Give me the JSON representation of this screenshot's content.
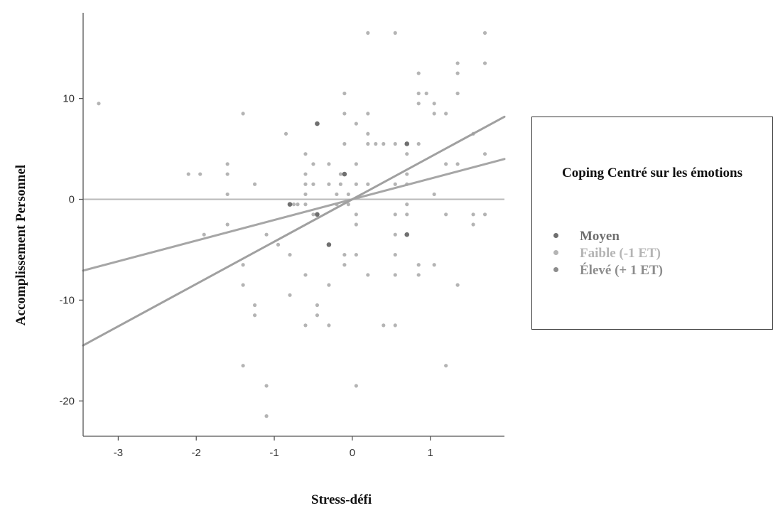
{
  "colors": {
    "moyen": "#6f6f6f",
    "faible": "#b4b4b4",
    "eleve": "#8c8c8c",
    "zero_line": "#b9b9b9"
  },
  "legend": {
    "title": "Coping Centré sur les émotions",
    "items": [
      {
        "label": "Moyen",
        "color": "#6f6f6f"
      },
      {
        "label": "Faible (-1 ET)",
        "color": "#b4b4b4"
      },
      {
        "label": "Élevé (+ 1 ET)",
        "color": "#8c8c8c"
      }
    ]
  },
  "chart_data": {
    "type": "scatter",
    "title": "",
    "xlabel": "Stress-défi",
    "ylabel": "Accomplissement Personnel",
    "xlim": [
      -3.45,
      1.95
    ],
    "ylim": [
      -23.5,
      18.5
    ],
    "xticks": [
      -3,
      -2,
      -1,
      0,
      1
    ],
    "yticks": [
      10,
      0,
      -10,
      -20
    ],
    "reference_line_y": 0,
    "fit_lines": [
      {
        "name": "Moyen",
        "slope": 0,
        "intercept": 0,
        "color": "#b9b9b9"
      },
      {
        "name": "Faible (-1 ET)",
        "slope": 2.05,
        "intercept": 0,
        "color": "#a6a6a6"
      },
      {
        "name": "Élevé (+ 1 ET)",
        "slope": 4.2,
        "intercept": 0,
        "color": "#a0a0a0"
      }
    ],
    "points": [
      [
        -3.25,
        9.5
      ],
      [
        -2.1,
        2.5
      ],
      [
        -1.95,
        2.5
      ],
      [
        -1.9,
        -3.5
      ],
      [
        -1.6,
        3.5
      ],
      [
        -1.6,
        2.5
      ],
      [
        -1.6,
        0.5
      ],
      [
        -1.6,
        -2.5
      ],
      [
        -1.4,
        8.5
      ],
      [
        -1.4,
        -6.5
      ],
      [
        -1.4,
        -8.5
      ],
      [
        -1.4,
        -16.5
      ],
      [
        -1.25,
        -10.5
      ],
      [
        -1.25,
        -11.5
      ],
      [
        -1.25,
        1.5
      ],
      [
        -1.1,
        -3.5
      ],
      [
        -1.1,
        -18.5
      ],
      [
        -1.1,
        -21.5
      ],
      [
        -0.95,
        -4.5
      ],
      [
        -0.85,
        6.5
      ],
      [
        -0.8,
        -0.5
      ],
      [
        -0.8,
        -5.5
      ],
      [
        -0.8,
        -9.5
      ],
      [
        -0.75,
        -0.5
      ],
      [
        -0.7,
        -0.5
      ],
      [
        -0.6,
        4.5
      ],
      [
        -0.6,
        2.5
      ],
      [
        -0.6,
        1.5
      ],
      [
        -0.6,
        0.5
      ],
      [
        -0.6,
        -0.5
      ],
      [
        -0.6,
        -7.5
      ],
      [
        -0.6,
        -12.5
      ],
      [
        -0.5,
        3.5
      ],
      [
        -0.5,
        1.5
      ],
      [
        -0.5,
        -1.5
      ],
      [
        -0.45,
        7.5
      ],
      [
        -0.45,
        -1.5
      ],
      [
        -0.45,
        -10.5
      ],
      [
        -0.45,
        -11.5
      ],
      [
        -0.3,
        3.5
      ],
      [
        -0.3,
        1.5
      ],
      [
        -0.3,
        -4.5
      ],
      [
        -0.3,
        -8.5
      ],
      [
        -0.3,
        -12.5
      ],
      [
        -0.2,
        0.5
      ],
      [
        -0.2,
        -0.5
      ],
      [
        -0.15,
        2.5
      ],
      [
        -0.15,
        1.5
      ],
      [
        -0.1,
        10.5
      ],
      [
        -0.1,
        8.5
      ],
      [
        -0.1,
        5.5
      ],
      [
        -0.1,
        2.5
      ],
      [
        -0.1,
        -5.5
      ],
      [
        -0.1,
        -6.5
      ],
      [
        -0.05,
        0.5
      ],
      [
        -0.05,
        -0.5
      ],
      [
        0.05,
        7.5
      ],
      [
        0.05,
        3.5
      ],
      [
        0.05,
        1.5
      ],
      [
        0.05,
        -1.5
      ],
      [
        0.05,
        -2.5
      ],
      [
        0.05,
        -5.5
      ],
      [
        0.05,
        -18.5
      ],
      [
        0.2,
        5.5
      ],
      [
        0.2,
        8.5
      ],
      [
        0.2,
        6.5
      ],
      [
        0.2,
        1.5
      ],
      [
        0.2,
        -7.5
      ],
      [
        0.2,
        16.5
      ],
      [
        0.3,
        5.5
      ],
      [
        0.4,
        5.5
      ],
      [
        0.4,
        -12.5
      ],
      [
        0.55,
        16.5
      ],
      [
        0.55,
        5.5
      ],
      [
        0.55,
        1.5
      ],
      [
        0.55,
        -1.5
      ],
      [
        0.55,
        -3.5
      ],
      [
        0.55,
        -5.5
      ],
      [
        0.55,
        -7.5
      ],
      [
        0.55,
        -12.5
      ],
      [
        0.7,
        5.5
      ],
      [
        0.7,
        4.5
      ],
      [
        0.7,
        2.5
      ],
      [
        0.7,
        1.5
      ],
      [
        0.7,
        -0.5
      ],
      [
        0.7,
        -1.5
      ],
      [
        0.7,
        -3.5
      ],
      [
        0.85,
        12.5
      ],
      [
        0.85,
        10.5
      ],
      [
        0.85,
        9.5
      ],
      [
        0.85,
        5.5
      ],
      [
        0.85,
        -6.5
      ],
      [
        0.85,
        -7.5
      ],
      [
        0.95,
        10.5
      ],
      [
        1.05,
        9.5
      ],
      [
        1.05,
        8.5
      ],
      [
        1.05,
        0.5
      ],
      [
        1.05,
        -6.5
      ],
      [
        1.2,
        8.5
      ],
      [
        1.2,
        3.5
      ],
      [
        1.2,
        -1.5
      ],
      [
        1.2,
        -16.5
      ],
      [
        1.35,
        13.5
      ],
      [
        1.35,
        12.5
      ],
      [
        1.35,
        10.5
      ],
      [
        1.35,
        3.5
      ],
      [
        1.35,
        -8.5
      ],
      [
        1.55,
        6.5
      ],
      [
        1.55,
        -1.5
      ],
      [
        1.55,
        -2.5
      ],
      [
        1.7,
        16.5
      ],
      [
        1.7,
        13.5
      ],
      [
        1.7,
        4.5
      ],
      [
        1.7,
        -1.5
      ]
    ],
    "highlight_points": [
      [
        -0.45,
        7.5
      ],
      [
        -0.3,
        -4.5
      ],
      [
        -0.45,
        -1.5
      ],
      [
        0.7,
        5.5
      ],
      [
        0.7,
        -3.5
      ],
      [
        -0.1,
        2.5
      ],
      [
        -0.8,
        -0.5
      ]
    ]
  }
}
